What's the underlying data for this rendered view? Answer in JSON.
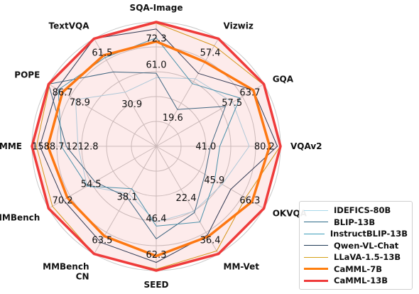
{
  "chart_data": {
    "type": "radar",
    "axes": [
      "SQA-Image",
      "Vizwiz",
      "GQA",
      "VQAv2",
      "OKVQA",
      "MM-Vet",
      "SEED",
      "MMBench CN",
      "MMBench",
      "MME",
      "POPE",
      "TextVQA"
    ],
    "axis_label_lines": [
      [
        "SQA-Image"
      ],
      [
        "Vizwiz"
      ],
      [
        "GQA"
      ],
      [
        "VQAv2"
      ],
      [
        "OKVQA"
      ],
      [
        "MM-Vet"
      ],
      [
        "SEED"
      ],
      [
        "MMBench",
        "CN"
      ],
      [
        "MMBench"
      ],
      [
        "MME"
      ],
      [
        "POPE"
      ],
      [
        "TextVQA"
      ]
    ],
    "axis_max": [
      72.3,
      57.4,
      63.7,
      80.2,
      66.3,
      36.4,
      62.3,
      63.5,
      70.2,
      1588.7,
      86.7,
      61.5
    ],
    "value_labels": [
      {
        "axis": "SQA-Image",
        "text": "72.3"
      },
      {
        "axis": "SQA-Image",
        "text": "61.0"
      },
      {
        "axis": "Vizwiz",
        "text": "57.4"
      },
      {
        "axis": "Vizwiz",
        "text": "19.6"
      },
      {
        "axis": "GQA",
        "text": "63.7"
      },
      {
        "axis": "GQA",
        "text": "57.5"
      },
      {
        "axis": "VQAv2",
        "text": "80.2"
      },
      {
        "axis": "VQAv2",
        "text": "41.0"
      },
      {
        "axis": "OKVQA",
        "text": "66.3"
      },
      {
        "axis": "OKVQA",
        "text": "45.9"
      },
      {
        "axis": "MM-Vet",
        "text": "36.4"
      },
      {
        "axis": "MM-Vet",
        "text": "22.4"
      },
      {
        "axis": "SEED",
        "text": "62.3"
      },
      {
        "axis": "SEED",
        "text": "46.4"
      },
      {
        "axis": "MMBench CN",
        "text": "63.5"
      },
      {
        "axis": "MMBench CN",
        "text": "38.1"
      },
      {
        "axis": "MMBench",
        "text": "70.2"
      },
      {
        "axis": "MMBench",
        "text": "54.5"
      },
      {
        "axis": "MME",
        "text": "1588.7"
      },
      {
        "axis": "MME",
        "text": "1212.8"
      },
      {
        "axis": "POPE",
        "text": "86.7"
      },
      {
        "axis": "POPE",
        "text": "78.9"
      },
      {
        "axis": "TextVQA",
        "text": "61.5"
      },
      {
        "axis": "TextVQA",
        "text": "30.9"
      }
    ],
    "series": [
      {
        "name": "IDEFICS-80B",
        "color": "#a8d8ea",
        "width": 1,
        "values": [
          40.0,
          36.0,
          45.2,
          60.0,
          40.6,
          22.0,
          38.0,
          28.0,
          45.0,
          1000.0,
          65.0,
          30.9
        ]
      },
      {
        "name": "BLIP-13B",
        "color": "#2c6a88",
        "width": 1,
        "values": [
          42.5,
          19.6,
          41.0,
          35.0,
          30.0,
          22.4,
          46.4,
          30.0,
          40.0,
          1150.0,
          86.7,
          42.5
        ]
      },
      {
        "name": "InstructBLIP-13B",
        "color": "#3a9cb8",
        "width": 1,
        "values": [
          63.1,
          33.4,
          49.5,
          41.0,
          36.0,
          25.6,
          40.0,
          25.0,
          45.0,
          1212.8,
          78.9,
          50.7
        ]
      },
      {
        "name": "Qwen-VL-Chat",
        "color": "#1f3b57",
        "width": 1,
        "values": [
          68.2,
          38.9,
          57.5,
          78.2,
          45.9,
          30.0,
          58.2,
          56.7,
          60.6,
          1487.5,
          80.0,
          61.5
        ]
      },
      {
        "name": "LLaVA-1.5-13B",
        "color": "#d4a017",
        "width": 1,
        "values": [
          71.6,
          53.6,
          63.3,
          80.0,
          55.0,
          35.4,
          61.6,
          63.5,
          67.7,
          1531.3,
          85.9,
          61.3
        ]
      },
      {
        "name": "CaMML-7B",
        "color": "#ff7f0e",
        "width": 3.5,
        "values": [
          61.0,
          45.0,
          57.5,
          73.2,
          59.0,
          30.5,
          55.0,
          53.0,
          58.0,
          1385.0,
          75.5,
          52.0
        ]
      },
      {
        "name": "CaMML-13B",
        "color": "#ef3b3b",
        "width": 3.5,
        "fill": true,
        "values": [
          72.3,
          57.4,
          63.7,
          80.2,
          66.3,
          36.4,
          62.3,
          63.5,
          70.2,
          1588.7,
          86.7,
          61.5
        ]
      }
    ],
    "grid": true,
    "legend_position": "bottom-right"
  }
}
